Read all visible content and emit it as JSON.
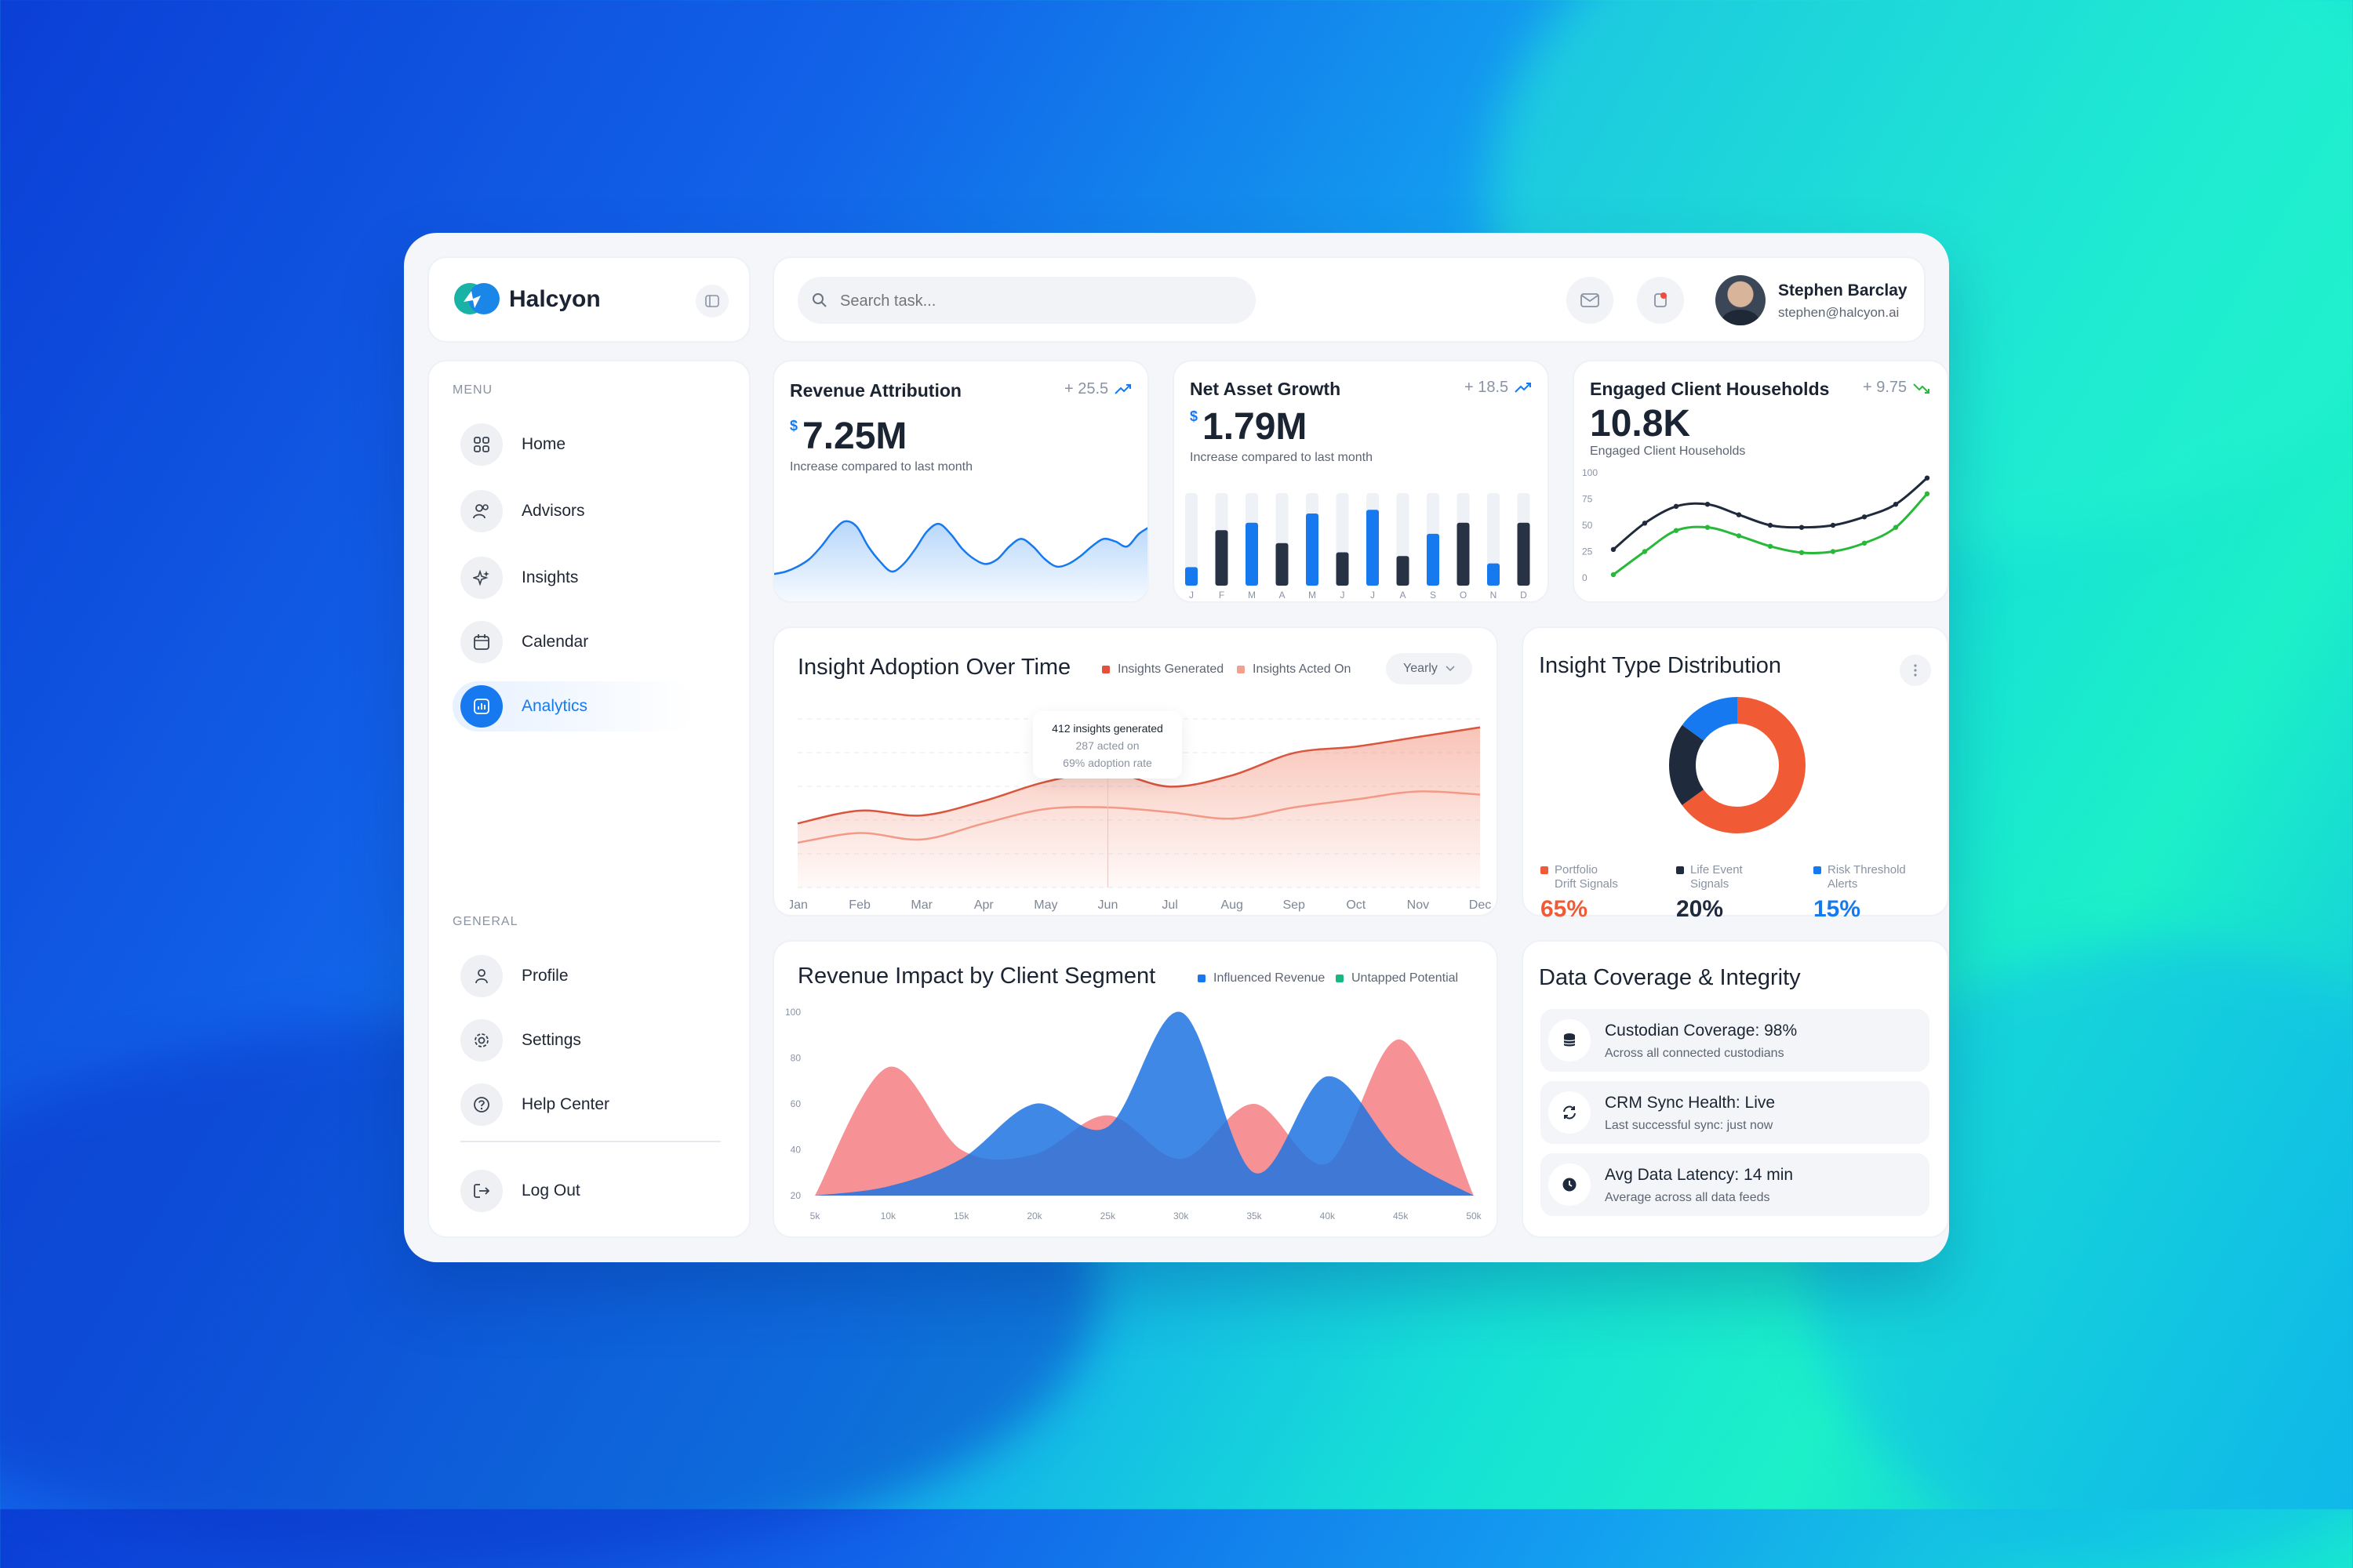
{
  "brand": {
    "name": "Halcyon"
  },
  "search": {
    "placeholder": "Search task..."
  },
  "user": {
    "name": "Stephen Barclay",
    "email": "stephen@halcyon.ai"
  },
  "sidebar": {
    "menu_label": "MENU",
    "general_label": "GENERAL",
    "menu_items": [
      {
        "label": "Home",
        "icon": "grid-icon"
      },
      {
        "label": "Advisors",
        "icon": "users-icon"
      },
      {
        "label": "Insights",
        "icon": "sparkle-icon"
      },
      {
        "label": "Calendar",
        "icon": "calendar-icon"
      },
      {
        "label": "Analytics",
        "icon": "analytics-icon",
        "active": true
      }
    ],
    "general_items": [
      {
        "label": "Profile",
        "icon": "user-icon"
      },
      {
        "label": "Settings",
        "icon": "gear-icon"
      },
      {
        "label": "Help Center",
        "icon": "help-icon"
      }
    ],
    "logout": "Log Out"
  },
  "kpis": {
    "revenue": {
      "title": "Revenue Attribution",
      "delta": "+ 25.5",
      "currency": "$",
      "value": "7.25M",
      "sub": "Increase compared to last month"
    },
    "net_asset": {
      "title": "Net Asset Growth",
      "delta": "+ 18.5",
      "currency": "$",
      "value": "1.79M",
      "sub": "Increase compared to last month"
    },
    "households": {
      "title": "Engaged Client Households",
      "delta": "+ 9.75",
      "value": "10.8K",
      "sub": "Engaged Client Households"
    }
  },
  "adoption": {
    "title": "Insight Adoption Over Time",
    "legend": [
      "Insights Generated",
      "Insights Acted On"
    ],
    "period": "Yearly",
    "tooltip": {
      "line1": "412 insights generated",
      "line2": "287 acted on",
      "line3": "69% adoption rate"
    }
  },
  "distribution": {
    "title": "Insight Type Distribution",
    "items": [
      {
        "label1": "Portfolio",
        "label2": "Drift Signals",
        "pct": "65%",
        "value": 65,
        "color": "#f05a35"
      },
      {
        "label1": "Life Event",
        "label2": "Signals",
        "pct": "20%",
        "value": 20,
        "color": "#1f2a3c"
      },
      {
        "label1": "Risk Threshold",
        "label2": "Alerts",
        "pct": "15%",
        "value": 15,
        "color": "#1779f0"
      }
    ]
  },
  "segment": {
    "title": "Revenue Impact by Client Segment",
    "legend": [
      "Influenced Revenue",
      "Untapped Potential"
    ]
  },
  "coverage": {
    "title": "Data Coverage & Integrity",
    "rows": [
      {
        "title": "Custodian Coverage: 98%",
        "sub": "Across all connected custodians",
        "icon": "database-icon"
      },
      {
        "title": "CRM Sync Health: Live",
        "sub": "Last successful sync: just now",
        "icon": "sync-icon"
      },
      {
        "title": "Avg Data Latency: 14 min",
        "sub": "Average across all data feeds",
        "icon": "clock-icon"
      }
    ]
  },
  "chart_data": [
    {
      "type": "area",
      "x": [
        "",
        "",
        "",
        "",
        "",
        "",
        "",
        "",
        "",
        "",
        "",
        "",
        "",
        "",
        "",
        "",
        "",
        "",
        "",
        "",
        "",
        "",
        "",
        "",
        "",
        "",
        "",
        "",
        "",
        "",
        "",
        "",
        ""
      ],
      "values": [
        18,
        20,
        24,
        30,
        40,
        52,
        60,
        56,
        40,
        28,
        20,
        26,
        38,
        52,
        58,
        50,
        38,
        30,
        26,
        30,
        40,
        46,
        40,
        30,
        24,
        26,
        32,
        40,
        46,
        44,
        40,
        50,
        56
      ]
    },
    {
      "type": "bar",
      "categories": [
        "J",
        "F",
        "M",
        "A",
        "M",
        "J",
        "J",
        "A",
        "S",
        "O",
        "N",
        "D"
      ],
      "series": [
        {
          "values": [
            20,
            60,
            68,
            46,
            78,
            36,
            82,
            32,
            56,
            68,
            24,
            68
          ]
        }
      ]
    },
    {
      "type": "line",
      "x": [
        0,
        1,
        2,
        3,
        4,
        5,
        6,
        7,
        8,
        9,
        10
      ],
      "ylim": [
        0,
        100
      ],
      "yticks": [
        "100",
        "75",
        "50",
        "25",
        "0"
      ],
      "series": [
        {
          "values": [
            27,
            52,
            68,
            70,
            60,
            50,
            48,
            50,
            58,
            70,
            95
          ],
          "color": "#1f2a3c"
        },
        {
          "values": [
            3,
            25,
            45,
            48,
            40,
            30,
            24,
            25,
            33,
            48,
            80
          ],
          "color": "#28b93a"
        }
      ]
    },
    {
      "type": "area",
      "categories": [
        "Jan",
        "Feb",
        "Mar",
        "Apr",
        "May",
        "Jun",
        "Jul",
        "Aug",
        "Sep",
        "Oct",
        "Nov",
        "Dec"
      ],
      "legend_position": "top",
      "series": [
        {
          "name": "Insights Generated",
          "values": [
            40,
            48,
            45,
            54,
            66,
            72,
            63,
            70,
            84,
            88,
            94,
            100
          ]
        },
        {
          "name": "Insights Acted On",
          "values": [
            28,
            34,
            30,
            40,
            49,
            50,
            47,
            43,
            50,
            55,
            60,
            58
          ]
        }
      ]
    },
    {
      "type": "pie",
      "categories": [
        "Portfolio Drift Signals",
        "Life Event Signals",
        "Risk Threshold Alerts"
      ],
      "values": [
        65,
        20,
        15
      ]
    },
    {
      "type": "area",
      "x": [
        "5k",
        "10k",
        "15k",
        "20k",
        "25k",
        "30k",
        "35k",
        "40k",
        "45k",
        "50k"
      ],
      "ylim": [
        20,
        100
      ],
      "yticks": [
        "100",
        "80",
        "60",
        "40",
        "20"
      ],
      "series": [
        {
          "name": "Influenced Revenue",
          "values": [
            22,
            24,
            36,
            60,
            50,
            100,
            30,
            72,
            38,
            20
          ]
        },
        {
          "name": "Untapped Potential",
          "values": [
            24,
            76,
            40,
            38,
            55,
            36,
            60,
            34,
            88,
            22
          ]
        }
      ]
    }
  ]
}
